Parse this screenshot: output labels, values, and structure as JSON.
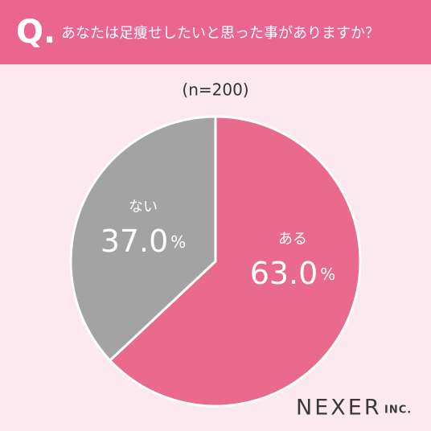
{
  "header": {
    "mark": "Q."
  },
  "chart_data": {
    "type": "pie",
    "title": "あなたは足痩せしたいと思った事がありますか？",
    "subtitle": "(n=200)",
    "categories": [
      "ある",
      "ない"
    ],
    "values": [
      63.0,
      37.0
    ],
    "value_labels": [
      "63.0%",
      "37.0%"
    ],
    "colors": [
      "#e96a8d",
      "#a3a3a3"
    ]
  },
  "brand": {
    "name": "NEXER",
    "suffix": "INC."
  }
}
